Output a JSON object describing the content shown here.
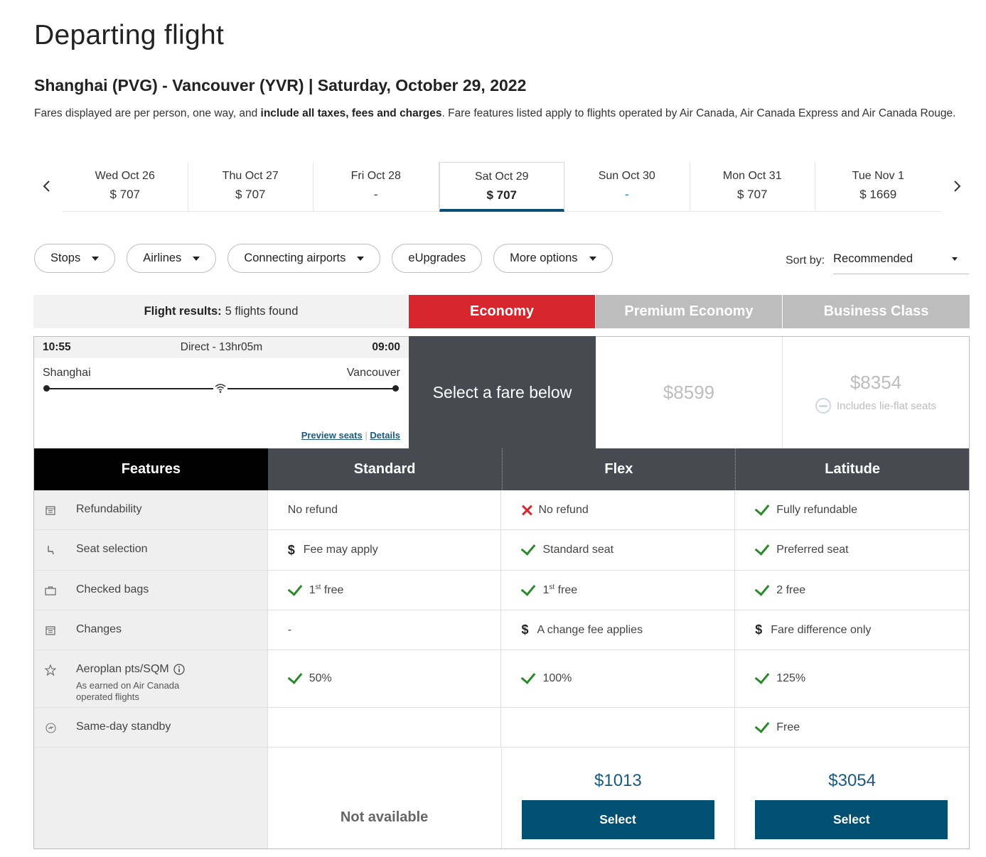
{
  "page": {
    "title": "Departing flight",
    "route": "Shanghai (PVG) - Vancouver (YVR) | Saturday, October 29, 2022",
    "fare_note_part1": "Fares displayed are per person, one way, and ",
    "fare_note_bold": "include all taxes, fees and charges",
    "fare_note_part2": ". Fare features listed apply to flights operated by Air Canada, Air Canada Express and Air Canada Rouge."
  },
  "dates": [
    {
      "label": "Wed Oct 26",
      "price": "$ 707"
    },
    {
      "label": "Thu Oct 27",
      "price": "$ 707"
    },
    {
      "label": "Fri Oct 28",
      "price": "-"
    },
    {
      "label": "Sat Oct 29",
      "price": "$ 707",
      "active": true
    },
    {
      "label": "Sun Oct 30",
      "price": "-"
    },
    {
      "label": "Mon Oct 31",
      "price": "$ 707"
    },
    {
      "label": "Tue Nov 1",
      "price": "$ 1669"
    }
  ],
  "filters": {
    "stops": "Stops",
    "airlines": "Airlines",
    "connecting": "Connecting airports",
    "eupgrades": "eUpgrades",
    "more": "More options"
  },
  "sort": {
    "label": "Sort by:",
    "value": "Recommended"
  },
  "results": {
    "label": "Flight results:",
    "count": "5 flights found"
  },
  "cabins": {
    "economy": "Economy",
    "premium": "Premium Economy",
    "business": "Business Class"
  },
  "flight": {
    "depart_time": "10:55",
    "duration": "Direct - 13hr05m",
    "arrive_time": "09:00",
    "origin": "Shanghai",
    "destination": "Vancouver",
    "preview_seats": "Preview seats",
    "separator": "|",
    "details": "Details",
    "select_fare": "Select a fare below",
    "premium_price": "$8599",
    "business_price": "$8354",
    "lie_flat": "Includes lie-flat seats"
  },
  "fare_table": {
    "headers": {
      "features": "Features",
      "standard": "Standard",
      "flex": "Flex",
      "latitude": "Latitude"
    },
    "refundability": {
      "label": "Refundability",
      "standard": "No refund",
      "flex": "No refund",
      "latitude": "Fully refundable"
    },
    "seat": {
      "label": "Seat selection",
      "standard": "Fee may apply",
      "flex": "Standard seat",
      "latitude": "Preferred seat"
    },
    "bags": {
      "label": "Checked bags",
      "standard_num": "1",
      "standard_sup": "st",
      "standard_rest": " free",
      "flex_num": "1",
      "flex_sup": "st",
      "flex_rest": " free",
      "latitude": "2 free"
    },
    "changes": {
      "label": "Changes",
      "standard": "-",
      "flex": "A change fee applies",
      "latitude": "Fare difference only"
    },
    "aeroplan": {
      "label": "Aeroplan pts/SQM",
      "sub": "As earned on Air Canada operated flights",
      "standard": "50%",
      "flex": "100%",
      "latitude": "125%"
    },
    "standby": {
      "label": "Same-day standby",
      "latitude": "Free"
    },
    "footer": {
      "not_available": "Not available",
      "flex_price": "$1013",
      "latitude_price": "$3054",
      "select": "Select"
    }
  },
  "icons": {
    "prev": "chevron-left-icon",
    "next": "chevron-right-icon",
    "wifi": "wifi-icon",
    "check_color": "#2a8a2a",
    "x_color": "#d8262e",
    "economy_color": "#d8262e",
    "select_color": "#005073"
  }
}
